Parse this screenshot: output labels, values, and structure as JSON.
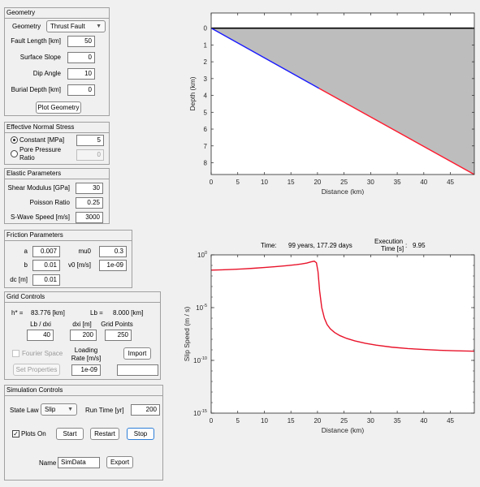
{
  "geometry": {
    "title": "Geometry",
    "geometry_label": "Geometry",
    "geometry_value": "Thrust Fault",
    "fault_length_label": "Fault Length [km]",
    "fault_length": "50",
    "surface_slope_label": "Surface Slope",
    "surface_slope": "0",
    "dip_angle_label": "Dip Angle",
    "dip_angle": "10",
    "burial_depth_label": "Burial Depth [km]",
    "burial_depth": "0",
    "plot_button": "Plot Geometry"
  },
  "normal_stress": {
    "title": "Effective Normal Stress",
    "constant_label": "Constant [MPa]",
    "constant_value": "5",
    "constant_selected": true,
    "pore_label_1": "Pore Pressure",
    "pore_label_2": "Ratio",
    "pore_value": "0"
  },
  "elastic": {
    "title": "Elastic Parameters",
    "shear_label": "Shear Modulus [GPa]",
    "shear_value": "30",
    "poisson_label": "Poisson Ratio",
    "poisson_value": "0.25",
    "swave_label": "S-Wave Speed [m/s]",
    "swave_value": "3000"
  },
  "friction": {
    "title": "Friction Parameters",
    "a_label": "a",
    "a_value": "0.007",
    "mu0_label": "mu0",
    "mu0_value": "0.3",
    "b_label": "b",
    "b_value": "0.01",
    "v0_label": "v0 [m/s]",
    "v0_value": "1e-09",
    "dc_label": "dc [m]",
    "dc_value": "0.01"
  },
  "grid": {
    "title": "Grid Controls",
    "hstar_label": "h* =",
    "hstar_value": "83.776 [km]",
    "lb_label": "Lb =",
    "lb_value": "8.000 [km]",
    "lb_dxi_label": "Lb / dxi",
    "lb_dxi_value": "40",
    "dxi_label": "dxi [m]",
    "dxi_value": "200",
    "gridpoints_label": "Grid Points",
    "gridpoints_value": "250",
    "fourier_label": "Fourier Space",
    "loading_label_1": "Loading",
    "loading_label_2": "Rate [m/s]",
    "import_button": "Import",
    "set_properties_button": "Set Properties",
    "loading_value": "1e-09",
    "import_field": ""
  },
  "simulation": {
    "title": "Simulation Controls",
    "state_law_label": "State Law",
    "state_law_value": "Slip",
    "run_time_label": "Run Time [yr]",
    "run_time_value": "200",
    "plots_on_label": "Plots On",
    "plots_on_checked": true,
    "start_button": "Start",
    "restart_button": "Restart",
    "stop_button": "Stop",
    "name_label": "Name",
    "name_value": "SimData",
    "export_button": "Export"
  },
  "status": {
    "time_label": "Time:",
    "time_value": "99 years, 177.29 days",
    "exec_label_1": "Execution",
    "exec_label_2": "Time [s]",
    "exec_colon": ":",
    "exec_value": "9.95"
  },
  "chart_data": [
    {
      "type": "area",
      "title": "",
      "xlabel": "Distance (km)",
      "ylabel": "Depth (km)",
      "xlim": [
        0,
        49.5
      ],
      "ylim": [
        -0.9,
        8.7
      ],
      "y_reversed": true,
      "xticks": [
        0,
        5,
        10,
        15,
        20,
        25,
        30,
        35,
        40,
        45
      ],
      "yticks": [
        0,
        1,
        2,
        3,
        4,
        5,
        6,
        7,
        8
      ],
      "surface": {
        "x": [
          0,
          49.5
        ],
        "y": [
          0,
          0
        ],
        "color": "#000000"
      },
      "series": [
        {
          "x": [
            0,
            20.3
          ],
          "y": [
            0,
            3.58
          ],
          "color": "#1a1aff"
        },
        {
          "x": [
            20.3,
            49.5
          ],
          "y": [
            3.58,
            8.73
          ],
          "color": "#ff1a2e"
        }
      ],
      "fill_color": "#bdbdbd"
    },
    {
      "type": "line",
      "title": "",
      "xlabel": "Distance (km)",
      "ylabel": "Slip Speed (m / s)",
      "xlim": [
        0,
        49.5
      ],
      "ylim_log10": [
        -15,
        0
      ],
      "log_y": true,
      "xticks": [
        0,
        5,
        10,
        15,
        20,
        25,
        30,
        35,
        40,
        45
      ],
      "ytick_labels": [
        "10^0",
        "10^-5",
        "10^-10",
        "10^-15"
      ],
      "series": [
        {
          "color": "#e8132a",
          "x": [
            0,
            2,
            4,
            6,
            8,
            10,
            12,
            14,
            16,
            17,
            18,
            18.8,
            19.4,
            19.8,
            20.1,
            20.4,
            20.8,
            21.3,
            21.8,
            22.4,
            23.2,
            24.2,
            25.5,
            27,
            29,
            31,
            34,
            37,
            40,
            43,
            46,
            49.5
          ],
          "log10_y": [
            -1.45,
            -1.42,
            -1.38,
            -1.33,
            -1.27,
            -1.2,
            -1.12,
            -1.03,
            -0.93,
            -0.86,
            -0.77,
            -0.66,
            -0.6,
            -0.75,
            -1.6,
            -3.4,
            -5.0,
            -6.0,
            -6.6,
            -7.0,
            -7.35,
            -7.65,
            -7.92,
            -8.15,
            -8.38,
            -8.55,
            -8.75,
            -8.88,
            -8.97,
            -9.04,
            -9.09,
            -9.13
          ]
        }
      ]
    }
  ]
}
